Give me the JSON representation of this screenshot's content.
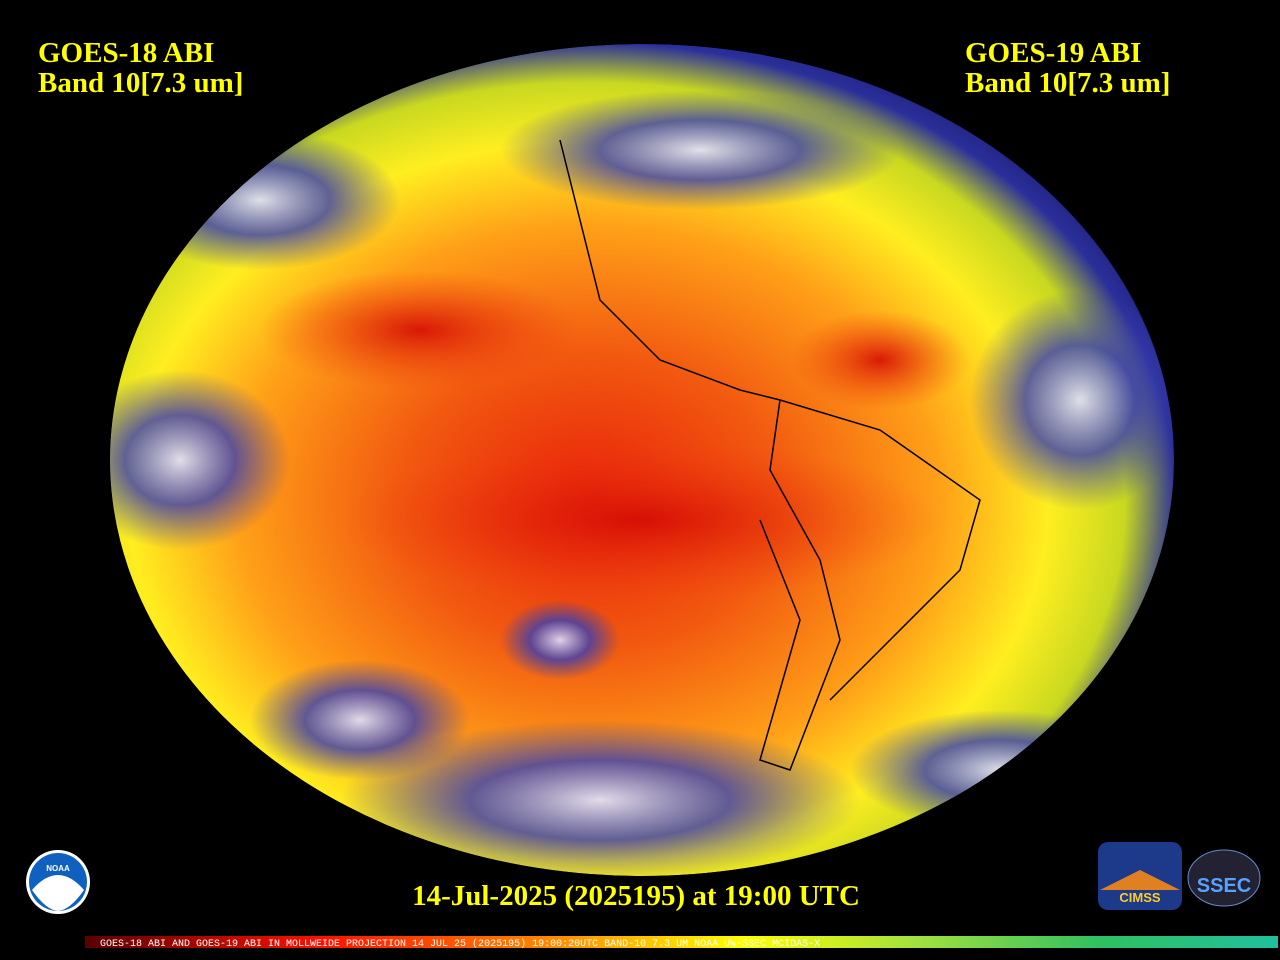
{
  "header": {
    "left": {
      "line1": "GOES-18 ABI",
      "line2": "Band 10[7.3 um]"
    },
    "right": {
      "line1": "GOES-19 ABI",
      "line2": "Band 10[7.3 um]"
    }
  },
  "timestamp": "14-Jul-2025 (2025195) at 19:00 UTC",
  "footer": "GOES-18 ABI AND GOES-19 ABI IN MOLLWEIDE PROJECTION 14 JUL 25 (2025195) 19:00:20UTC BAND-10 7.3 UM NOAA UW-SSEC MCIDAS-X",
  "logos": {
    "noaa": "NOAA",
    "cimss": "CIMSS",
    "ssec": "SSEC"
  }
}
